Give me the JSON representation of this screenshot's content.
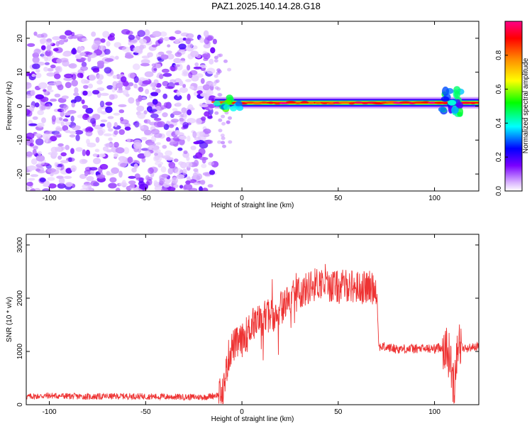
{
  "title": "PAZ1.2025.140.14.28.G18",
  "chart_data": [
    {
      "type": "heatmap",
      "xlabel": "Height of straight line (km)",
      "ylabel": "Frequency (Hz)",
      "xlim": [
        -112,
        123
      ],
      "ylim": [
        -25,
        25
      ],
      "xticks": [
        -100,
        -50,
        0,
        50,
        100
      ],
      "yticks": [
        -20,
        -10,
        0,
        10,
        20
      ],
      "colorbar": {
        "label": "Normalized spectral amplitude",
        "range": [
          0.0,
          1.0
        ],
        "ticks": [
          0.0,
          0.2,
          0.4,
          0.6,
          0.8
        ],
        "colors": [
          "#ffffff",
          "#cc99ff",
          "#6600ff",
          "#0000ff",
          "#00ffff",
          "#00ff00",
          "#ffff00",
          "#ff8800",
          "#ff0000",
          "#ff0088"
        ]
      },
      "description_points": [
        {
          "x_range": [
            -112,
            -14
          ],
          "y_range": [
            -25,
            22
          ],
          "amplitude": 0.1,
          "feature": "scattered noise"
        },
        {
          "x_range": [
            -14,
            123
          ],
          "y": 1,
          "amplitude": 0.95,
          "feature": "carrier line"
        },
        {
          "x_range": [
            104,
            114
          ],
          "y_range": [
            -3,
            5
          ],
          "amplitude": 0.4,
          "feature": "disturbance"
        }
      ]
    },
    {
      "type": "line",
      "xlabel": "Height of straight line (km)",
      "ylabel": "SNR (10 * v/v)",
      "xlim": [
        -112,
        123
      ],
      "ylim": [
        0,
        3200
      ],
      "xticks": [
        -100,
        -50,
        0,
        50,
        100
      ],
      "yticks": [
        0,
        1000,
        2000,
        3000
      ],
      "color": "#ee3333",
      "x": [
        -112,
        -100,
        -80,
        -60,
        -40,
        -20,
        -10,
        -7,
        -5,
        0,
        5,
        10,
        15,
        20,
        25,
        30,
        35,
        40,
        45,
        50,
        55,
        60,
        65,
        70,
        71,
        80,
        90,
        100,
        105,
        108,
        110,
        112,
        115,
        123
      ],
      "y": [
        150,
        170,
        150,
        160,
        150,
        140,
        200,
        900,
        1100,
        1200,
        1500,
        1600,
        1700,
        1800,
        2000,
        2100,
        2200,
        2300,
        2250,
        2200,
        2250,
        2200,
        2200,
        2200,
        1100,
        1050,
        1050,
        1050,
        1100,
        900,
        300,
        1200,
        1050,
        1100
      ]
    }
  ]
}
